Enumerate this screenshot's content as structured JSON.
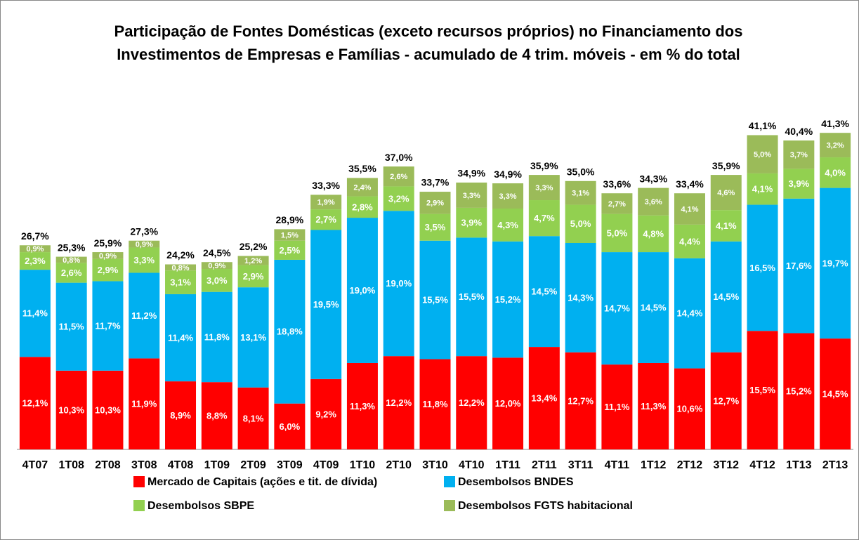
{
  "chart_data": {
    "type": "stacked-bar",
    "title": "Participação de Fontes Domésticas (exceto recursos próprios) no Financiamento dos Investimentos de Empresas e Famílias - acumulado de 4 trim. móveis - em % do total",
    "categories": [
      "4T07",
      "1T08",
      "2T08",
      "3T08",
      "4T08",
      "1T09",
      "2T09",
      "3T09",
      "4T09",
      "1T10",
      "2T10",
      "3T10",
      "4T10",
      "1T11",
      "2T11",
      "3T11",
      "4T11",
      "1T12",
      "2T12",
      "3T12",
      "4T12",
      "1T13",
      "2T13"
    ],
    "series": [
      {
        "name": "Mercado de Capitais (ações e tit. de dívida)",
        "color": "#ff0000",
        "values": [
          12.1,
          10.3,
          10.3,
          11.9,
          8.9,
          8.8,
          8.1,
          6.0,
          9.2,
          11.3,
          12.2,
          11.8,
          12.2,
          12.0,
          13.4,
          12.7,
          11.1,
          11.3,
          10.6,
          12.7,
          15.5,
          15.2,
          14.5
        ],
        "value_labels": [
          "12,1%",
          "10,3%",
          "10,3%",
          "11,9%",
          "8,9%",
          "8,8%",
          "8,1%",
          "6,0%",
          "9,2%",
          "11,3%",
          "12,2%",
          "11,8%",
          "12,2%",
          "12,0%",
          "13,4%",
          "12,7%",
          "11,1%",
          "11,3%",
          "10,6%",
          "12,7%",
          "15,5%",
          "15,2%",
          "14,5%"
        ]
      },
      {
        "name": "Desembolsos BNDES",
        "color": "#00b0f0",
        "values": [
          11.4,
          11.5,
          11.7,
          11.2,
          11.4,
          11.8,
          13.1,
          18.8,
          19.5,
          19.0,
          19.0,
          15.5,
          15.5,
          15.2,
          14.5,
          14.3,
          14.7,
          14.5,
          14.4,
          14.5,
          16.5,
          17.6,
          19.7
        ],
        "value_labels": [
          "11,4%",
          "11,5%",
          "11,7%",
          "11,2%",
          "11,4%",
          "11,8%",
          "13,1%",
          "18,8%",
          "19,5%",
          "19,0%",
          "19,0%",
          "15,5%",
          "15,5%",
          "15,2%",
          "14,5%",
          "14,3%",
          "14,7%",
          "14,5%",
          "14,4%",
          "14,5%",
          "16,5%",
          "17,6%",
          "19,7%"
        ]
      },
      {
        "name": "Desembolsos SBPE",
        "color": "#92d050",
        "values": [
          2.3,
          2.6,
          2.9,
          3.3,
          3.1,
          3.0,
          2.9,
          2.5,
          2.7,
          2.8,
          3.2,
          3.5,
          3.9,
          4.3,
          4.7,
          5.0,
          5.0,
          4.8,
          4.4,
          4.1,
          4.1,
          3.9,
          4.0
        ],
        "value_labels": [
          "2,3%",
          "2,6%",
          "2,9%",
          "3,3%",
          "3,1%",
          "3,0%",
          "2,9%",
          "2,5%",
          "2,7%",
          "2,8%",
          "3,2%",
          "3,5%",
          "3,9%",
          "4,3%",
          "4,7%",
          "5,0%",
          "5,0%",
          "4,8%",
          "4,4%",
          "4,1%",
          "4,1%",
          "3,9%",
          "4,0%"
        ]
      },
      {
        "name": "Desembolsos FGTS habitacional",
        "color": "#9bbb59",
        "values": [
          0.9,
          0.8,
          0.9,
          0.9,
          0.8,
          0.9,
          1.2,
          1.5,
          1.9,
          2.4,
          2.6,
          2.9,
          3.3,
          3.3,
          3.3,
          3.1,
          2.7,
          3.6,
          4.1,
          4.6,
          5.0,
          3.7,
          3.2
        ],
        "value_labels": [
          "0,9%",
          "0,8%",
          "0,9%",
          "0,9%",
          "0,8%",
          "0,9%",
          "1,2%",
          "1,5%",
          "1,9%",
          "2,4%",
          "2,6%",
          "2,9%",
          "3,3%",
          "3,3%",
          "3,3%",
          "3,1%",
          "2,7%",
          "3,6%",
          "4,1%",
          "4,6%",
          "5,0%",
          "3,7%",
          "3,2%"
        ]
      }
    ],
    "totals": [
      26.7,
      25.3,
      25.9,
      27.3,
      24.2,
      24.5,
      25.2,
      28.9,
      33.3,
      35.5,
      37.0,
      33.7,
      34.9,
      34.9,
      35.9,
      35.0,
      33.6,
      34.3,
      33.4,
      35.9,
      41.1,
      40.4,
      41.3
    ],
    "total_labels": [
      "26,7%",
      "25,3%",
      "25,9%",
      "27,3%",
      "24,2%",
      "24,5%",
      "25,2%",
      "28,9%",
      "33,3%",
      "35,5%",
      "37,0%",
      "33,7%",
      "34,9%",
      "34,9%",
      "35,9%",
      "35,0%",
      "33,6%",
      "34,3%",
      "33,4%",
      "35,9%",
      "41,1%",
      "40,4%",
      "41,3%"
    ],
    "ylim": [
      0,
      45
    ],
    "grid": false
  }
}
